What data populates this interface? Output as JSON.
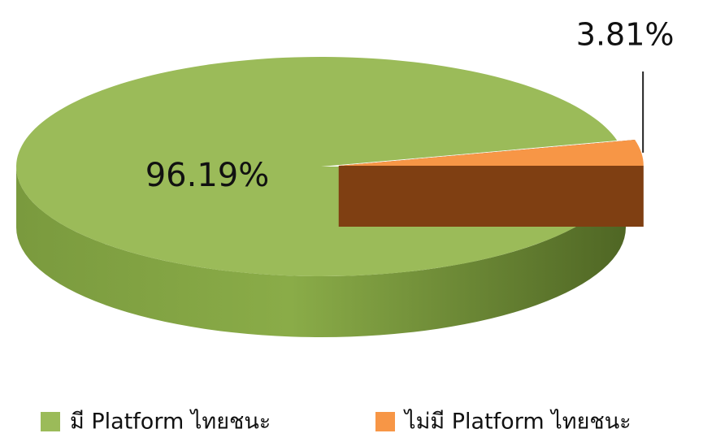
{
  "chart_data": {
    "type": "pie",
    "categories": [
      "มี Platform ไทยชนะ",
      "ไม่มี Platform ไทยชนะ"
    ],
    "values": [
      96.19,
      3.81
    ],
    "value_labels": [
      "96.19%",
      "3.81%"
    ],
    "colors": [
      "#9bbb59",
      "#f79646"
    ],
    "legend": "bottom"
  }
}
